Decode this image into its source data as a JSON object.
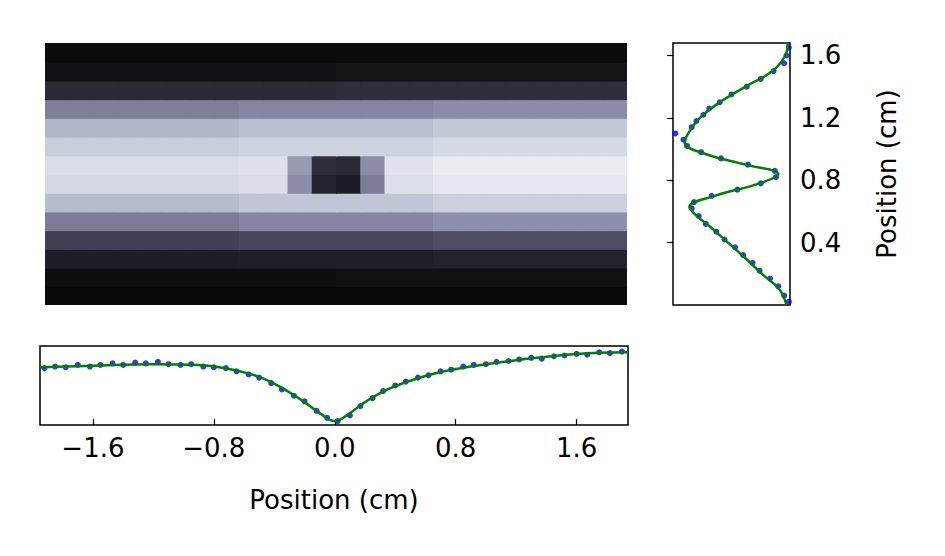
{
  "chart_data": [
    {
      "type": "heatmap",
      "x": [
        -1.84,
        -1.68,
        -1.52,
        -1.36,
        -1.2,
        -1.04,
        -0.88,
        -0.72,
        -0.56,
        -0.4,
        -0.24,
        -0.08,
        0.08,
        0.24,
        0.4,
        0.56,
        0.72,
        0.88,
        1.04,
        1.2,
        1.36,
        1.52,
        1.68,
        1.84
      ],
      "y": [
        0.06,
        0.18,
        0.3,
        0.42,
        0.54,
        0.66,
        0.78,
        0.9,
        1.02,
        1.14,
        1.26,
        1.38,
        1.5,
        1.62
      ],
      "values": [
        [
          0.04,
          0.04,
          0.04,
          0.04,
          0.04,
          0.04,
          0.04,
          0.04,
          0.04,
          0.04,
          0.04,
          0.04,
          0.04,
          0.04,
          0.04,
          0.04,
          0.04,
          0.04,
          0.04,
          0.04,
          0.04,
          0.04,
          0.04,
          0.04
        ],
        [
          0.06,
          0.06,
          0.06,
          0.06,
          0.06,
          0.06,
          0.06,
          0.06,
          0.06,
          0.06,
          0.06,
          0.06,
          0.07,
          0.07,
          0.07,
          0.07,
          0.07,
          0.07,
          0.07,
          0.07,
          0.07,
          0.07,
          0.07,
          0.07
        ],
        [
          0.13,
          0.13,
          0.13,
          0.13,
          0.13,
          0.13,
          0.13,
          0.13,
          0.14,
          0.14,
          0.14,
          0.14,
          0.14,
          0.14,
          0.14,
          0.14,
          0.15,
          0.15,
          0.15,
          0.15,
          0.15,
          0.15,
          0.15,
          0.15
        ],
        [
          0.27,
          0.27,
          0.27,
          0.27,
          0.27,
          0.27,
          0.27,
          0.27,
          0.29,
          0.29,
          0.29,
          0.29,
          0.29,
          0.29,
          0.29,
          0.29,
          0.31,
          0.31,
          0.31,
          0.31,
          0.31,
          0.31,
          0.31,
          0.31
        ],
        [
          0.45,
          0.45,
          0.45,
          0.45,
          0.45,
          0.45,
          0.45,
          0.45,
          0.48,
          0.48,
          0.48,
          0.48,
          0.48,
          0.48,
          0.48,
          0.48,
          0.51,
          0.51,
          0.51,
          0.51,
          0.51,
          0.51,
          0.51,
          0.51
        ],
        [
          0.68,
          0.68,
          0.68,
          0.68,
          0.68,
          0.68,
          0.68,
          0.68,
          0.72,
          0.72,
          0.72,
          0.72,
          0.72,
          0.72,
          0.72,
          0.72,
          0.76,
          0.76,
          0.76,
          0.76,
          0.76,
          0.76,
          0.76,
          0.76
        ],
        [
          0.82,
          0.82,
          0.82,
          0.82,
          0.82,
          0.82,
          0.82,
          0.82,
          0.85,
          0.85,
          0.5,
          0.15,
          0.12,
          0.45,
          0.86,
          0.86,
          0.92,
          0.92,
          0.92,
          0.92,
          0.92,
          0.92,
          0.92,
          0.92
        ],
        [
          0.84,
          0.84,
          0.84,
          0.84,
          0.84,
          0.84,
          0.84,
          0.84,
          0.87,
          0.87,
          0.55,
          0.2,
          0.18,
          0.5,
          0.88,
          0.88,
          0.94,
          0.94,
          0.94,
          0.94,
          0.94,
          0.94,
          0.94,
          0.94
        ],
        [
          0.75,
          0.75,
          0.75,
          0.75,
          0.75,
          0.75,
          0.75,
          0.75,
          0.78,
          0.78,
          0.78,
          0.78,
          0.78,
          0.78,
          0.78,
          0.78,
          0.83,
          0.83,
          0.83,
          0.83,
          0.83,
          0.83,
          0.83,
          0.83
        ],
        [
          0.66,
          0.66,
          0.66,
          0.66,
          0.66,
          0.66,
          0.66,
          0.66,
          0.69,
          0.69,
          0.69,
          0.69,
          0.69,
          0.69,
          0.69,
          0.69,
          0.73,
          0.73,
          0.73,
          0.73,
          0.73,
          0.73,
          0.73,
          0.73
        ],
        [
          0.46,
          0.46,
          0.46,
          0.46,
          0.46,
          0.46,
          0.46,
          0.46,
          0.48,
          0.48,
          0.48,
          0.48,
          0.48,
          0.48,
          0.48,
          0.48,
          0.5,
          0.5,
          0.5,
          0.5,
          0.5,
          0.5,
          0.5,
          0.5
        ],
        [
          0.18,
          0.18,
          0.18,
          0.18,
          0.18,
          0.18,
          0.18,
          0.18,
          0.18,
          0.18,
          0.18,
          0.18,
          0.2,
          0.2,
          0.2,
          0.2,
          0.2,
          0.2,
          0.2,
          0.2,
          0.2,
          0.2,
          0.2,
          0.2
        ],
        [
          0.07,
          0.07,
          0.07,
          0.07,
          0.07,
          0.07,
          0.07,
          0.07,
          0.07,
          0.07,
          0.07,
          0.07,
          0.08,
          0.08,
          0.08,
          0.08,
          0.08,
          0.08,
          0.08,
          0.08,
          0.08,
          0.08,
          0.08,
          0.08
        ],
        [
          0.05,
          0.05,
          0.05,
          0.05,
          0.05,
          0.05,
          0.05,
          0.05,
          0.05,
          0.05,
          0.05,
          0.05,
          0.05,
          0.05,
          0.05,
          0.05,
          0.05,
          0.05,
          0.05,
          0.05,
          0.05,
          0.05,
          0.05,
          0.05
        ]
      ],
      "color_range": [
        0,
        1
      ],
      "xlim": [
        -1.92,
        1.92
      ],
      "ylim": [
        0,
        1.68
      ],
      "tick_labels": false,
      "grid": false
    },
    {
      "type": "line",
      "xlabel": "Position (cm)",
      "xlim": [
        -1.95,
        1.94
      ],
      "ylim": [
        0,
        1
      ],
      "xticks": [
        {
          "value": -1.6,
          "label": "−1.6"
        },
        {
          "value": -0.8,
          "label": "−0.8"
        },
        {
          "value": 0,
          "label": "0.0"
        },
        0.8,
        1.6
      ],
      "tick_labels": "x",
      "grid": false,
      "series": [
        {
          "type": "scatter",
          "color": "#0000ff",
          "marker": "circle",
          "x": [
            -1.92,
            -1.85,
            -1.78,
            -1.7,
            -1.62,
            -1.55,
            -1.47,
            -1.4,
            -1.32,
            -1.25,
            -1.17,
            -1.1,
            -1.02,
            -0.95,
            -0.87,
            -0.8,
            -0.72,
            -0.65,
            -0.57,
            -0.5,
            -0.42,
            -0.35,
            -0.27,
            -0.2,
            -0.12,
            -0.05,
            0.02,
            0.1,
            0.17,
            0.25,
            0.32,
            0.4,
            0.47,
            0.55,
            0.62,
            0.7,
            0.77,
            0.85,
            0.92,
            1.0,
            1.07,
            1.15,
            1.22,
            1.3,
            1.37,
            1.45,
            1.52,
            1.6,
            1.67,
            1.75,
            1.82,
            1.9
          ],
          "values": [
            0.72,
            0.74,
            0.73,
            0.76,
            0.74,
            0.76,
            0.78,
            0.76,
            0.79,
            0.78,
            0.8,
            0.77,
            0.76,
            0.77,
            0.74,
            0.73,
            0.72,
            0.68,
            0.64,
            0.6,
            0.53,
            0.45,
            0.37,
            0.3,
            0.18,
            0.09,
            0.05,
            0.12,
            0.24,
            0.34,
            0.43,
            0.5,
            0.55,
            0.6,
            0.63,
            0.68,
            0.7,
            0.74,
            0.76,
            0.77,
            0.8,
            0.81,
            0.83,
            0.85,
            0.84,
            0.87,
            0.88,
            0.9,
            0.89,
            0.92,
            0.91,
            0.93
          ]
        },
        {
          "type": "line",
          "color": "#008000",
          "line_style": "solid",
          "x": [
            -1.95,
            -1.6,
            -1.2,
            -0.9,
            -0.7,
            -0.5,
            -0.35,
            -0.2,
            -0.1,
            0,
            0.1,
            0.2,
            0.35,
            0.5,
            0.7,
            0.9,
            1.2,
            1.6,
            1.94
          ],
          "values": [
            0.73,
            0.75,
            0.77,
            0.76,
            0.71,
            0.61,
            0.47,
            0.29,
            0.15,
            0.05,
            0.15,
            0.29,
            0.45,
            0.56,
            0.67,
            0.74,
            0.82,
            0.9,
            0.92
          ]
        }
      ]
    },
    {
      "type": "line",
      "ylabel": "Position (cm)",
      "xlim": [
        0,
        1
      ],
      "ylim": [
        0,
        1.68
      ],
      "yticks": [
        0.4,
        0.8,
        1.2,
        1.6
      ],
      "tick_labels": "y",
      "grid": false,
      "series": [
        {
          "type": "scatter",
          "color": "#0000ff",
          "marker": "circle",
          "x": [
            0.99,
            0.95,
            0.9,
            0.83,
            0.74,
            0.68,
            0.6,
            0.53,
            0.44,
            0.37,
            0.28,
            0.22,
            0.16,
            0.18,
            0.33,
            0.55,
            0.75,
            0.88,
            0.87,
            0.64,
            0.41,
            0.24,
            0.12,
            0.09,
            0.02,
            0.16,
            0.2,
            0.26,
            0.31,
            0.4,
            0.5,
            0.63,
            0.75,
            0.86,
            0.95,
            0.97,
            0.99
          ],
          "values": [
            0.02,
            0.06,
            0.12,
            0.17,
            0.22,
            0.27,
            0.32,
            0.37,
            0.42,
            0.47,
            0.52,
            0.57,
            0.62,
            0.66,
            0.7,
            0.74,
            0.78,
            0.82,
            0.86,
            0.9,
            0.94,
            0.98,
            1.02,
            1.06,
            1.1,
            1.14,
            1.18,
            1.22,
            1.26,
            1.3,
            1.35,
            1.4,
            1.45,
            1.5,
            1.55,
            1.6,
            1.65
          ]
        },
        {
          "type": "line",
          "color": "#008000",
          "line_style": "solid",
          "x": [
            0.97,
            0.91,
            0.76,
            0.62,
            0.47,
            0.32,
            0.19,
            0.14,
            0.36,
            0.74,
            0.9,
            0.62,
            0.27,
            0.1,
            0.13,
            0.23,
            0.4,
            0.62,
            0.85,
            0.96,
            0.98
          ],
          "values": [
            0,
            0.1,
            0.2,
            0.3,
            0.4,
            0.5,
            0.58,
            0.63,
            0.7,
            0.78,
            0.84,
            0.9,
            0.97,
            1.04,
            1.1,
            1.2,
            1.3,
            1.4,
            1.5,
            1.6,
            1.68
          ]
        }
      ]
    }
  ]
}
